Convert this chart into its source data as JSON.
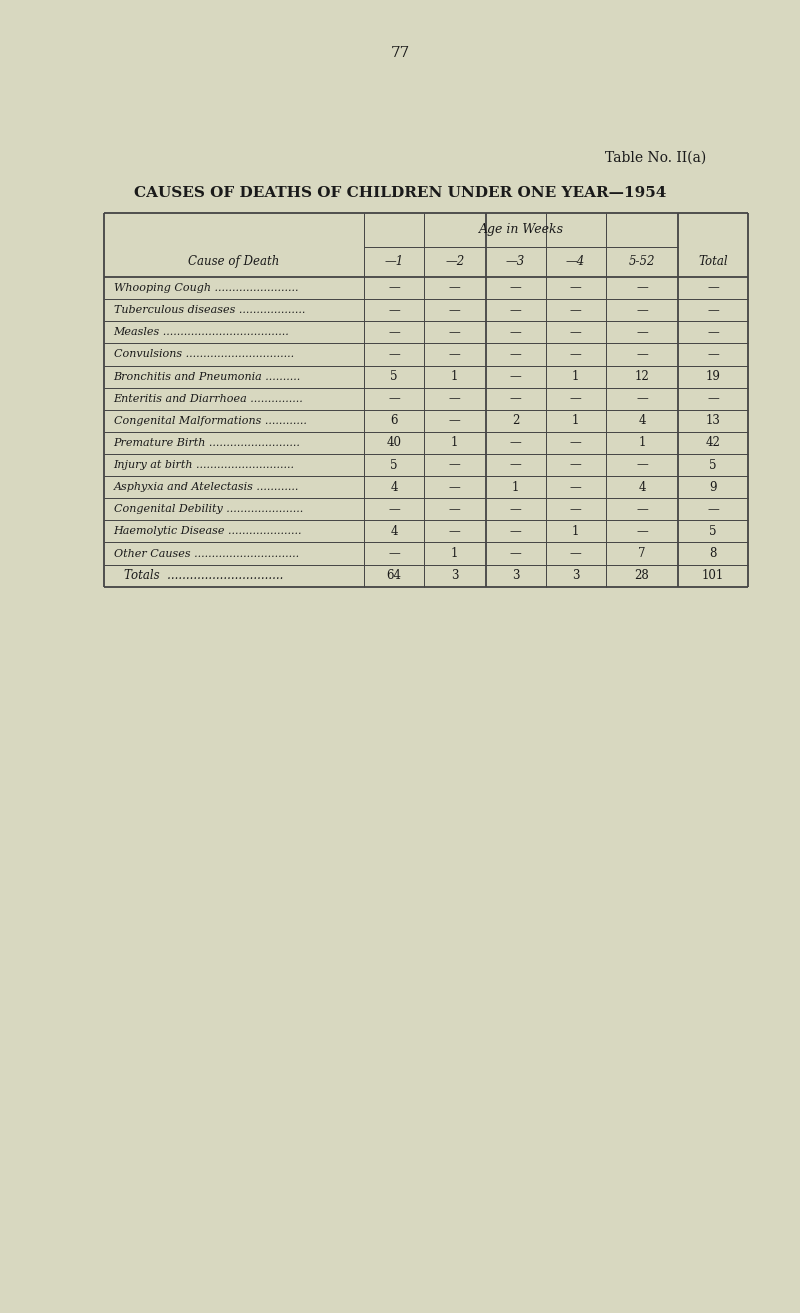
{
  "page_number": "77",
  "table_label": "Table No. II(a)",
  "title": "CAUSES OF DEATHS OF CHILDREN UNDER ONE YEAR—1954",
  "col_header_group": "Age in Weeks",
  "rows": [
    [
      "Whooping Cough",
      "—",
      "—",
      "—",
      "—",
      "—",
      "—"
    ],
    [
      "Tuberculous diseases",
      "—",
      "—",
      "—",
      "—",
      "—",
      "—"
    ],
    [
      "Measles",
      "—",
      "—",
      "—",
      "—",
      "—",
      "—"
    ],
    [
      "Convulsions",
      "—",
      "—",
      "—",
      "—",
      "—",
      "—"
    ],
    [
      "Bronchitis and Pneumonia",
      "5",
      "1",
      "—",
      "1",
      "12",
      "19"
    ],
    [
      "Enteritis and Diarrhoea",
      "—",
      "—",
      "—",
      "—",
      "—",
      "—"
    ],
    [
      "Congenital Malformations",
      "6",
      "—",
      "2",
      "1",
      "4",
      "13"
    ],
    [
      "Premature Birth",
      "40",
      "1",
      "—",
      "—",
      "1",
      "42"
    ],
    [
      "Injury at birth",
      "5",
      "—",
      "—",
      "—",
      "—",
      "5"
    ],
    [
      "Asphyxia and Atelectasis",
      "4",
      "—",
      "1",
      "—",
      "4",
      "9"
    ],
    [
      "Congenital Debility",
      "—",
      "—",
      "—",
      "—",
      "—",
      "—"
    ],
    [
      "Haemolytic Disease",
      "4",
      "—",
      "—",
      "1",
      "—",
      "5"
    ],
    [
      "Other Causes",
      "—",
      "1",
      "—",
      "—",
      "7",
      "8"
    ],
    [
      "Totals",
      "64",
      "3",
      "3",
      "3",
      "28",
      "101"
    ]
  ],
  "bg_color": "#d8d8c0",
  "text_color": "#1a1a1a",
  "line_color": "#444444",
  "fig_width": 8.0,
  "fig_height": 13.13
}
